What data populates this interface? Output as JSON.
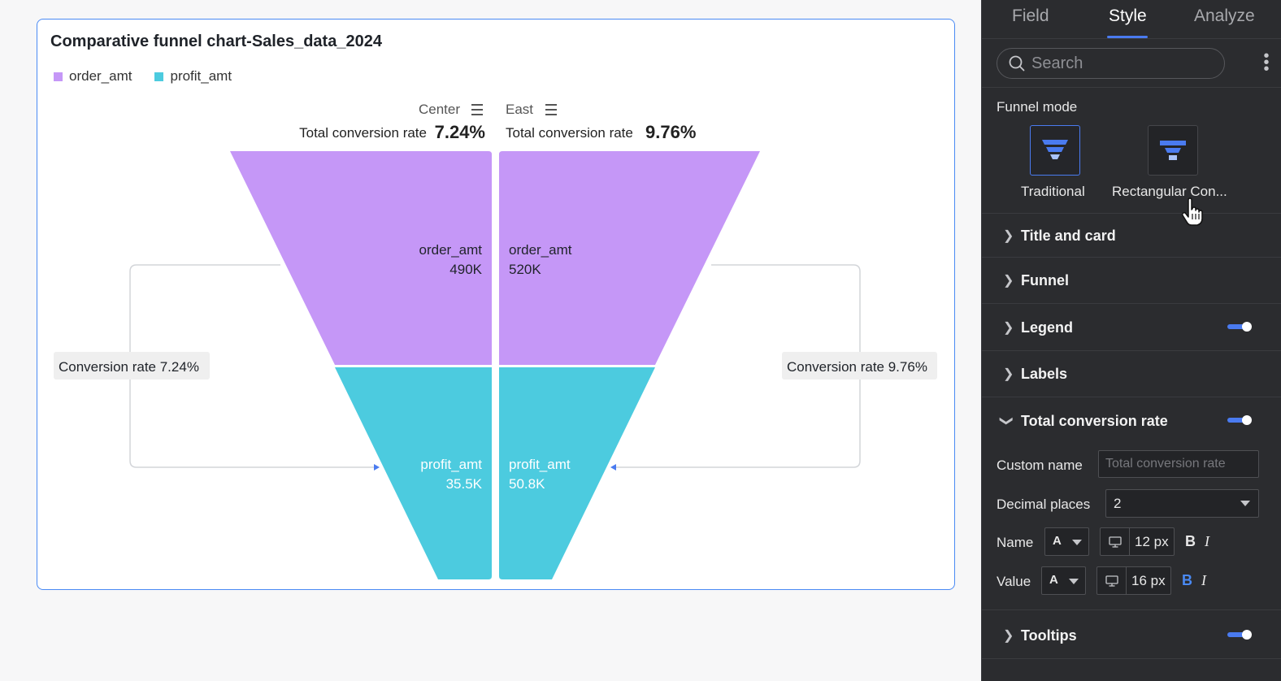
{
  "chart": {
    "title": "Comparative funnel chart-Sales_data_2024",
    "legend": [
      {
        "label": "order_amt",
        "color": "#c597f7"
      },
      {
        "label": "profit_amt",
        "color": "#4ccbdf"
      }
    ],
    "groups": [
      {
        "name": "Center",
        "total_label": "Total conversion rate",
        "total_value": "7.24%",
        "conversion_label": "Conversion rate 7.24%"
      },
      {
        "name": "East",
        "total_label": "Total conversion rate",
        "total_value": "9.76%",
        "conversion_label": "Conversion rate 9.76%"
      }
    ],
    "stages": [
      {
        "name": "order_amt",
        "center": "490K",
        "east": "520K"
      },
      {
        "name": "profit_amt",
        "center": "35.5K",
        "east": "50.8K"
      }
    ]
  },
  "chart_data": {
    "type": "funnel",
    "title": "Comparative funnel chart-Sales_data_2024",
    "categories": [
      "order_amt",
      "profit_amt"
    ],
    "series": [
      {
        "name": "Center",
        "values": [
          490000,
          35500
        ],
        "total_conversion_rate": "7.24%"
      },
      {
        "name": "East",
        "values": [
          520000,
          50800
        ],
        "total_conversion_rate": "9.76%"
      }
    ],
    "colors": {
      "order_amt": "#c597f7",
      "profit_amt": "#4ccbdf"
    },
    "legend_position": "top-left"
  },
  "panel": {
    "tabs": [
      "Field",
      "Style",
      "Analyze"
    ],
    "active_tab": "Style",
    "search_placeholder": "Search",
    "funnel_mode": {
      "label": "Funnel mode",
      "options": [
        "Traditional",
        "Rectangular Con..."
      ],
      "selected": "Traditional"
    },
    "sections": {
      "title_and_card": "Title and card",
      "funnel": "Funnel",
      "legend": "Legend",
      "labels": "Labels",
      "total_conversion_rate": "Total conversion rate",
      "tooltips": "Tooltips"
    },
    "toggles": {
      "legend": true,
      "total_conversion_rate": true,
      "tooltips": true
    },
    "total_conversion_rate": {
      "custom_name_label": "Custom name",
      "custom_name_placeholder": "Total conversion rate",
      "decimal_places_label": "Decimal places",
      "decimal_places_value": "2",
      "name_label": "Name",
      "name_font_size": "12 px",
      "value_label": "Value",
      "value_font_size": "16 px",
      "font_color_glyph": "A",
      "bold_glyph": "B",
      "italic_glyph": "I",
      "name_bold": false,
      "value_bold": true
    }
  },
  "colors": {
    "accent": "#4a7bf0",
    "panel_bg": "#2b2c2f",
    "card_border": "#4a8af4"
  }
}
